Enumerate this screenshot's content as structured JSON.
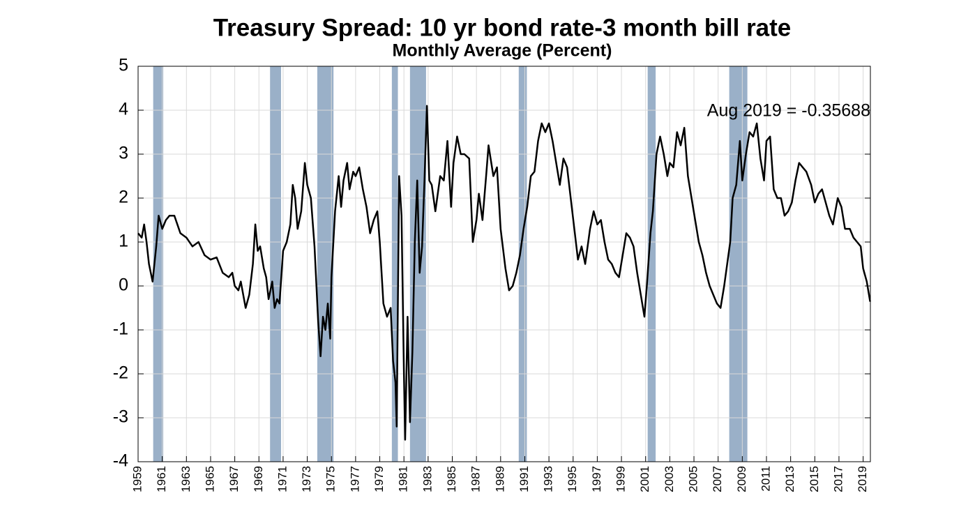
{
  "chart_data": {
    "type": "line",
    "title": "Treasury Spread: 10 yr bond rate-3 month bill rate",
    "subtitle": "Monthly Average (Percent)",
    "annotation": "Aug 2019 = -0.35688",
    "xlim": [
      1959,
      2019.6
    ],
    "ylim": [
      -4,
      5
    ],
    "yticks": [
      -4,
      -3,
      -2,
      -1,
      0,
      1,
      2,
      3,
      4,
      5
    ],
    "xticks": [
      1959,
      1961,
      1963,
      1965,
      1967,
      1969,
      1971,
      1973,
      1975,
      1977,
      1979,
      1981,
      1983,
      1985,
      1987,
      1989,
      1991,
      1993,
      1995,
      1997,
      1999,
      2001,
      2003,
      2005,
      2007,
      2009,
      2011,
      2013,
      2015,
      2017,
      2019
    ],
    "grid": true,
    "recession_color": "#9ab0c8",
    "recessions": [
      {
        "start": 1960.25,
        "end": 1961.08
      },
      {
        "start": 1969.92,
        "end": 1970.83
      },
      {
        "start": 1973.83,
        "end": 1975.17
      },
      {
        "start": 1980.0,
        "end": 1980.5
      },
      {
        "start": 1981.5,
        "end": 1982.83
      },
      {
        "start": 1990.5,
        "end": 1991.17
      },
      {
        "start": 2001.17,
        "end": 2001.83
      },
      {
        "start": 2007.92,
        "end": 2009.42
      }
    ],
    "series": [
      {
        "color": "#000000",
        "x": [
          1959.0,
          1959.3,
          1959.5,
          1959.7,
          1959.9,
          1960.2,
          1960.5,
          1960.7,
          1961.0,
          1961.3,
          1961.6,
          1962.0,
          1962.5,
          1963.0,
          1963.5,
          1964.0,
          1964.5,
          1965.0,
          1965.5,
          1966.0,
          1966.5,
          1966.8,
          1967.0,
          1967.3,
          1967.5,
          1967.9,
          1968.2,
          1968.5,
          1968.7,
          1968.9,
          1969.1,
          1969.4,
          1969.6,
          1969.8,
          1970.1,
          1970.3,
          1970.5,
          1970.7,
          1971.0,
          1971.3,
          1971.6,
          1971.8,
          1972.0,
          1972.2,
          1972.5,
          1972.8,
          1973.0,
          1973.3,
          1973.6,
          1973.9,
          1974.1,
          1974.3,
          1974.5,
          1974.7,
          1974.9,
          1975.0,
          1975.3,
          1975.6,
          1975.8,
          1976.0,
          1976.3,
          1976.5,
          1976.8,
          1977.0,
          1977.3,
          1977.6,
          1977.9,
          1978.2,
          1978.5,
          1978.8,
          1979.0,
          1979.3,
          1979.6,
          1979.9,
          1980.1,
          1980.3,
          1980.4,
          1980.6,
          1980.8,
          1981.0,
          1981.1,
          1981.3,
          1981.5,
          1981.7,
          1981.9,
          1982.1,
          1982.3,
          1982.5,
          1982.7,
          1982.9,
          1983.1,
          1983.3,
          1983.6,
          1984.0,
          1984.3,
          1984.6,
          1984.9,
          1985.1,
          1985.4,
          1985.7,
          1986.0,
          1986.4,
          1986.7,
          1987.0,
          1987.2,
          1987.5,
          1987.8,
          1988.0,
          1988.4,
          1988.7,
          1989.0,
          1989.4,
          1989.7,
          1990.0,
          1990.3,
          1990.6,
          1990.9,
          1991.2,
          1991.5,
          1991.8,
          1992.1,
          1992.4,
          1992.7,
          1993.0,
          1993.3,
          1993.6,
          1993.9,
          1994.2,
          1994.5,
          1994.8,
          1995.1,
          1995.4,
          1995.7,
          1996.0,
          1996.4,
          1996.7,
          1997.0,
          1997.3,
          1997.6,
          1997.9,
          1998.2,
          1998.5,
          1998.8,
          1999.1,
          1999.4,
          1999.7,
          2000.0,
          2000.3,
          2000.6,
          2000.9,
          2001.1,
          2001.4,
          2001.6,
          2001.9,
          2002.2,
          2002.5,
          2002.8,
          2003.0,
          2003.3,
          2003.6,
          2003.9,
          2004.2,
          2004.5,
          2004.8,
          2005.1,
          2005.4,
          2005.7,
          2006.0,
          2006.3,
          2006.6,
          2006.9,
          2007.2,
          2007.5,
          2007.8,
          2008.0,
          2008.2,
          2008.5,
          2008.8,
          2009.0,
          2009.3,
          2009.6,
          2009.9,
          2010.2,
          2010.5,
          2010.8,
          2011.0,
          2011.3,
          2011.6,
          2011.9,
          2012.2,
          2012.5,
          2012.8,
          2013.1,
          2013.4,
          2013.7,
          2014.0,
          2014.3,
          2014.7,
          2015.0,
          2015.3,
          2015.6,
          2015.9,
          2016.2,
          2016.5,
          2016.9,
          2017.2,
          2017.5,
          2017.9,
          2018.2,
          2018.5,
          2018.8,
          2019.0,
          2019.3,
          2019.58
        ],
        "values": [
          1.2,
          1.1,
          1.4,
          1.0,
          0.5,
          0.1,
          0.9,
          1.6,
          1.3,
          1.5,
          1.6,
          1.6,
          1.2,
          1.1,
          0.9,
          1.0,
          0.7,
          0.6,
          0.65,
          0.3,
          0.2,
          0.3,
          0.0,
          -0.1,
          0.1,
          -0.5,
          -0.2,
          0.5,
          1.4,
          0.8,
          0.9,
          0.4,
          0.2,
          -0.3,
          0.1,
          -0.5,
          -0.3,
          -0.4,
          0.8,
          1.0,
          1.4,
          2.3,
          2.0,
          1.3,
          1.7,
          2.8,
          2.3,
          2.0,
          0.9,
          -0.8,
          -1.6,
          -0.7,
          -1.0,
          -0.4,
          -1.2,
          0.2,
          1.7,
          2.5,
          1.8,
          2.4,
          2.8,
          2.2,
          2.6,
          2.5,
          2.7,
          2.2,
          1.8,
          1.2,
          1.5,
          1.7,
          1.0,
          -0.4,
          -0.7,
          -0.5,
          -1.7,
          -2.2,
          -3.2,
          2.5,
          1.6,
          -2.0,
          -3.5,
          -0.7,
          -3.1,
          -1.5,
          1.0,
          2.4,
          0.3,
          0.9,
          2.4,
          4.1,
          2.4,
          2.3,
          1.7,
          2.5,
          2.4,
          3.3,
          1.8,
          2.8,
          3.4,
          3.0,
          3.0,
          2.9,
          1.0,
          1.5,
          2.1,
          1.5,
          2.5,
          3.2,
          2.5,
          2.7,
          1.3,
          0.4,
          -0.1,
          0.0,
          0.3,
          0.7,
          1.3,
          1.8,
          2.5,
          2.6,
          3.3,
          3.7,
          3.5,
          3.7,
          3.3,
          2.8,
          2.3,
          2.9,
          2.7,
          2.0,
          1.3,
          0.6,
          0.9,
          0.5,
          1.3,
          1.7,
          1.4,
          1.5,
          1.0,
          0.6,
          0.5,
          0.3,
          0.2,
          0.7,
          1.2,
          1.1,
          0.9,
          0.3,
          -0.2,
          -0.7,
          0.0,
          1.2,
          1.7,
          3.0,
          3.4,
          3.0,
          2.5,
          2.8,
          2.7,
          3.5,
          3.2,
          3.6,
          2.5,
          2.0,
          1.5,
          1.0,
          0.7,
          0.3,
          0.0,
          -0.2,
          -0.4,
          -0.5,
          0.0,
          0.6,
          1.0,
          2.0,
          2.3,
          3.3,
          2.4,
          3.0,
          3.5,
          3.4,
          3.7,
          2.9,
          2.4,
          3.3,
          3.4,
          2.2,
          2.0,
          2.0,
          1.6,
          1.7,
          1.9,
          2.4,
          2.8,
          2.7,
          2.6,
          2.3,
          1.9,
          2.1,
          2.2,
          1.9,
          1.6,
          1.4,
          2.0,
          1.8,
          1.3,
          1.3,
          1.1,
          1.0,
          0.9,
          0.4,
          0.1,
          -0.35688
        ]
      }
    ]
  }
}
